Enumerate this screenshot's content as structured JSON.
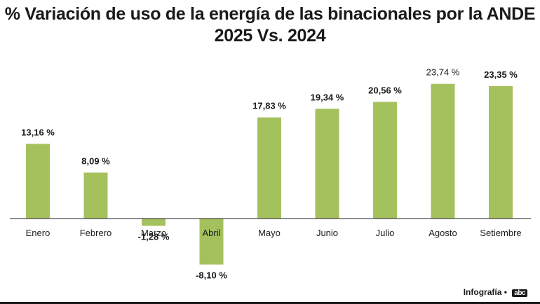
{
  "title_line1": "% Variación de uso de la energía de las binacionales por la ANDE",
  "title_line2": "2025 Vs. 2024",
  "footer": {
    "label": "Infografía",
    "separator": "•",
    "brand": "abc"
  },
  "colors": {
    "bar": "#a5c15e",
    "axis": "#222222",
    "text": "#1a1a1a"
  },
  "chart_data": {
    "type": "bar",
    "title": "% Variación de uso de la energía de las binacionales por la ANDE 2025 Vs. 2024",
    "categories": [
      "Enero",
      "Febrero",
      "Marzo",
      "Abril",
      "Mayo",
      "Junio",
      "Julio",
      "Agosto",
      "Setiembre"
    ],
    "values": [
      13.16,
      8.09,
      -1.28,
      -8.1,
      17.83,
      19.34,
      20.56,
      23.74,
      23.35
    ],
    "labels": [
      "13,16 %",
      "8,09 %",
      "-1,28 %",
      "-8,10 %",
      "17,83 %",
      "19,34 %",
      "20,56 %",
      "23,74 %",
      "23,35 %"
    ],
    "label_bold": [
      true,
      true,
      true,
      true,
      true,
      true,
      true,
      false,
      true
    ],
    "xlabel": "",
    "ylabel": "",
    "ylim": [
      -8.1,
      23.74
    ],
    "grid": false,
    "legend": "none"
  }
}
